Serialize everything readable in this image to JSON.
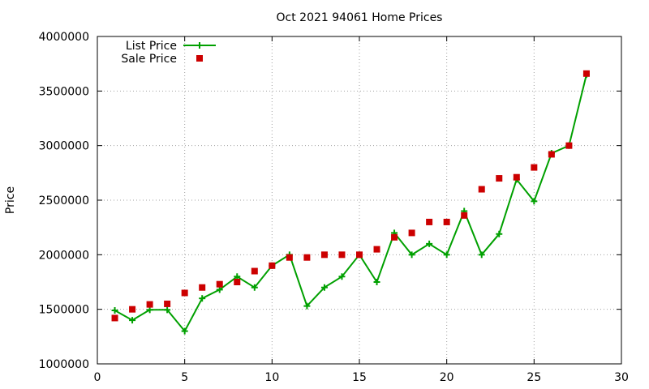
{
  "chart_data": {
    "type": "line",
    "title": "Oct 2021 94061 Home Prices",
    "xlabel": "",
    "ylabel": "Price",
    "xlim": [
      0,
      30
    ],
    "ylim": [
      1000000,
      4000000
    ],
    "xticks": [
      0,
      5,
      10,
      15,
      20,
      25,
      30
    ],
    "yticks": [
      1000000,
      1500000,
      2000000,
      2500000,
      3000000,
      3500000,
      4000000
    ],
    "grid": true,
    "legend_position": "top-left",
    "series": [
      {
        "name": "List Price",
        "style": "line+plus",
        "color": "#00a000",
        "x": [
          1,
          2,
          3,
          4,
          5,
          6,
          7,
          8,
          9,
          10,
          11,
          12,
          13,
          14,
          15,
          16,
          17,
          18,
          19,
          20,
          21,
          22,
          23,
          24,
          25,
          26,
          27,
          28
        ],
        "y": [
          1490000,
          1400000,
          1495000,
          1495000,
          1300000,
          1600000,
          1680000,
          1800000,
          1700000,
          1900000,
          2000000,
          1530000,
          1700000,
          1800000,
          2000000,
          1750000,
          2200000,
          2000000,
          2100000,
          2000000,
          2400000,
          2000000,
          2190000,
          2690000,
          2490000,
          2930000,
          3000000,
          3650000
        ]
      },
      {
        "name": "Sale Price",
        "style": "square",
        "color": "#cc0000",
        "x": [
          1,
          2,
          3,
          4,
          5,
          6,
          7,
          8,
          9,
          10,
          11,
          12,
          13,
          14,
          15,
          16,
          17,
          18,
          19,
          20,
          21,
          22,
          23,
          24,
          25,
          26,
          27,
          28
        ],
        "y": [
          1420000,
          1500000,
          1545000,
          1550000,
          1650000,
          1700000,
          1730000,
          1750000,
          1850000,
          1900000,
          1975000,
          1975000,
          2000000,
          2000000,
          2000000,
          2050000,
          2160000,
          2200000,
          2300000,
          2300000,
          2360000,
          2600000,
          2700000,
          2710000,
          2800000,
          2920000,
          3000000,
          3660000
        ]
      }
    ]
  }
}
